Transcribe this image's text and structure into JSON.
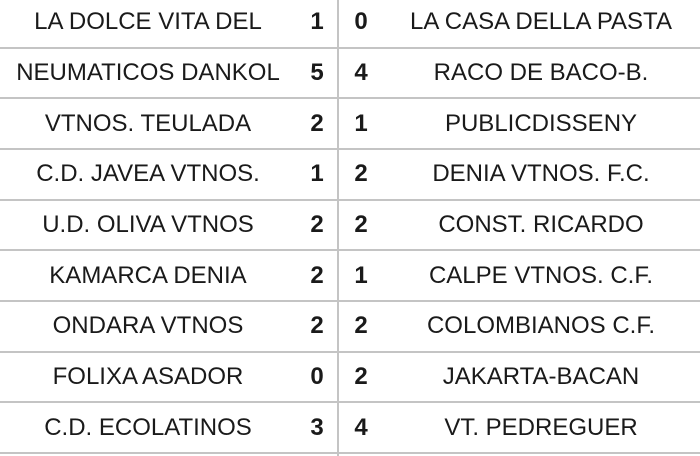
{
  "matches": [
    {
      "home": "LA DOLCE VITA DEL",
      "home_score": "1",
      "away_score": "0",
      "away": "LA CASA DELLA PASTA"
    },
    {
      "home": "NEUMATICOS DANKOL",
      "home_score": "5",
      "away_score": "4",
      "away": "RACO DE BACO-B."
    },
    {
      "home": "VTNOS. TEULADA",
      "home_score": "2",
      "away_score": "1",
      "away": "PUBLICDISSENY"
    },
    {
      "home": "C.D. JAVEA VTNOS.",
      "home_score": "1",
      "away_score": "2",
      "away": "DENIA VTNOS. F.C."
    },
    {
      "home": "U.D. OLIVA VTNOS",
      "home_score": "2",
      "away_score": "2",
      "away": "CONST. RICARDO"
    },
    {
      "home": "KAMARCA DENIA",
      "home_score": "2",
      "away_score": "1",
      "away": "CALPE VTNOS. C.F."
    },
    {
      "home": "ONDARA VTNOS",
      "home_score": "2",
      "away_score": "2",
      "away": "COLOMBIANOS C.F."
    },
    {
      "home": "FOLIXA ASADOR",
      "home_score": "0",
      "away_score": "2",
      "away": "JAKARTA-BACAN"
    },
    {
      "home": "C.D. ECOLATINOS",
      "home_score": "3",
      "away_score": "4",
      "away": "VT. PEDREGUER"
    }
  ]
}
